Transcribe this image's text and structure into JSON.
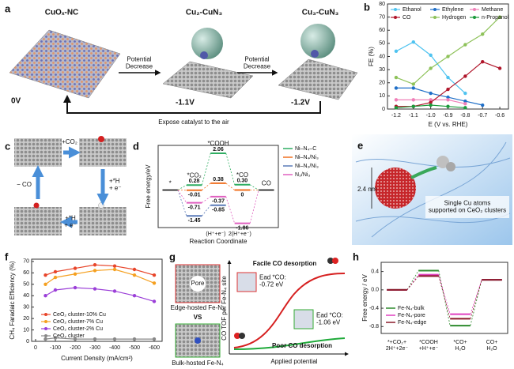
{
  "panel_labels": [
    "a",
    "b",
    "c",
    "d",
    "e",
    "f",
    "g",
    "h"
  ],
  "panel_a": {
    "catalysts": [
      "CuOₓ-NC",
      "Cu₂-CuN₃",
      "Cu₃-CuN₃"
    ],
    "potentials": [
      "0V",
      "-1.1V",
      "-1.2V"
    ],
    "arrows": [
      "Potential\nDecrease",
      "Potential\nDecrease"
    ],
    "return_arrow": "Expose catalyst to the air"
  },
  "panel_c": {
    "steps": [
      "+CO₂",
      "+*H\n+ e⁻",
      "+*H\n+ e⁻",
      "− CO"
    ]
  },
  "panel_e": {
    "scale": "2.4 nm",
    "caption": "Single Cu atoms\nsupported on CeO₂ clusters"
  },
  "panel_g": {
    "pore": "Pore",
    "edge_site": "Edge-hosted Fe-N₄",
    "versus": "VS",
    "bulk_site": "Bulk-hosted Fe-N₄",
    "y_label": "CO TOF per Fe-N₄ site",
    "x_label": "Applied potential",
    "facile": "Facile CO desorption",
    "poor": "Poor CO desorption",
    "edge_energy": "Ead *CO:\n-0.72 eV",
    "bulk_energy": "Ead *CO:\n-1.06 eV"
  },
  "chart_data": [
    {
      "type": "line",
      "x_label": "E (V vs. RHE)",
      "y_label": "FE (%)",
      "x": [
        -1.2,
        -1.1,
        -1,
        -0.9,
        -0.8,
        -0.7,
        -0.6
      ],
      "xlim": [
        -1.25,
        -0.55
      ],
      "xticks": [
        -1.2,
        -1.1,
        {
          "value": -1,
          "label": "-1.0"
        },
        -0.9,
        -0.8,
        -0.7,
        -0.6
      ],
      "ylim": [
        0,
        80
      ],
      "yticks": [
        0,
        10,
        20,
        30,
        40,
        50,
        60,
        70,
        80
      ],
      "legend": "top",
      "series": [
        {
          "name": "Ethanol",
          "color": "#4fc3f0",
          "values": [
            44,
            51,
            41,
            24,
            12,
            null,
            null
          ]
        },
        {
          "name": "Ethylene",
          "color": "#1f6fc8",
          "values": [
            16,
            16,
            12,
            9,
            6,
            3,
            null
          ]
        },
        {
          "name": "Methane",
          "color": "#f07fb8",
          "values": [
            7,
            7,
            7,
            7,
            4,
            null,
            null
          ]
        },
        {
          "name": "CO",
          "color": "#b0152a",
          "values": [
            2,
            2,
            5,
            15,
            25,
            36,
            31
          ]
        },
        {
          "name": "Hydrogen",
          "color": "#8ec25a",
          "values": [
            24,
            19,
            31,
            40,
            49,
            57,
            70
          ]
        },
        {
          "name": "n-Propanol",
          "color": "#1a9a3a",
          "values": [
            1,
            2,
            3,
            2,
            1,
            null,
            null
          ]
        }
      ]
    },
    {
      "type": "energy",
      "x_label": "Reaction Coordinate",
      "y_label": "Free energy/eV",
      "categories": [
        "*",
        "*CO₂",
        "*COOH",
        "*CO",
        "CO"
      ],
      "steps": [
        "(H⁺+e⁻)",
        "2(H⁺+e⁻)"
      ],
      "ylim": [
        -2.1,
        2.5
      ],
      "legend": "right",
      "series": [
        {
          "name": "Ni–N₄–C",
          "color": "#2fae62",
          "values": [
            null,
            0.28,
            2.06,
            0.3,
            null
          ],
          "value_labels": [
            null,
            "0.28",
            "2.06",
            "0.30",
            null
          ]
        },
        {
          "name": "Ni–N₄/Ni₃",
          "color": "#f07020",
          "values": [
            null,
            -0.01,
            0.38,
            0,
            null
          ],
          "value_labels": [
            null,
            "-0.01",
            "0.38",
            "0",
            null
          ]
        },
        {
          "name": "Ni–N₃/Ni₃",
          "color": "#5a7ab8",
          "values": [
            null,
            -1.45,
            -0.85,
            null,
            null
          ],
          "value_labels": [
            null,
            "-1.45",
            "-0.85",
            null,
            null
          ]
        },
        {
          "name": "N₃/Ni₃",
          "color": "#e060c0",
          "values": [
            null,
            -0.71,
            -0.37,
            -1.86,
            null
          ],
          "value_labels": [
            null,
            "-0.71",
            "-0.37",
            "-1.86",
            null
          ]
        }
      ]
    },
    {
      "type": "line",
      "x_label": "Current Density (mA/cm²)",
      "y_label": "CH₄ Faradaic Efficiency (%)",
      "x": [
        -50,
        -100,
        -200,
        -300,
        -400,
        -500,
        -600
      ],
      "xlim": [
        20,
        -640
      ],
      "xticks": [
        0,
        -100,
        -200,
        -300,
        -400,
        -500,
        -600
      ],
      "ylim": [
        0,
        72
      ],
      "yticks": [
        0,
        10,
        20,
        30,
        40,
        50,
        60,
        70
      ],
      "legend": "bottom-left",
      "series": [
        {
          "name": "CeO₂ cluster-10% Cu",
          "color": "#e8452a",
          "values": [
            58,
            61,
            64,
            67,
            66,
            63,
            58
          ]
        },
        {
          "name": "CeO₂ cluster-7% Cu",
          "color": "#f5a020",
          "values": [
            50,
            56,
            59,
            62,
            63,
            58,
            51
          ]
        },
        {
          "name": "CeO₂ cluster-2% Cu",
          "color": "#9b3fd8",
          "values": [
            40,
            45,
            47,
            46,
            44,
            40,
            35
          ]
        },
        {
          "name": "CeO₂ cluster",
          "color": "#888888",
          "values": [
            2,
            3,
            2,
            2,
            2,
            2,
            2
          ]
        }
      ]
    },
    {
      "type": "energy",
      "y_label": "Free energy / eV",
      "categories": [
        "*+CO₂+\n2H⁺+2e⁻",
        "*COOH\n+H⁺+e⁻",
        "*CO+\nH₂O",
        "CO+\nH₂O"
      ],
      "ylim": [
        -0.95,
        0.6
      ],
      "yticks": [
        -0.8,
        -0.4,
        {
          "value": 0,
          "label": "0.0"
        },
        0.4
      ],
      "legend": "bottom-left",
      "series": [
        {
          "name": "Fe-N₄-bulk",
          "color": "#2e8b2e",
          "values": [
            0,
            0.42,
            -0.78,
            0.22
          ]
        },
        {
          "name": "Fe-N₄-pore",
          "color": "#e040c0",
          "values": [
            0,
            0.33,
            -0.53,
            0.22
          ]
        },
        {
          "name": "Fe-N₄-edge",
          "color": "#8b1a2a",
          "values": [
            0,
            0.3,
            -0.63,
            0.22
          ]
        }
      ]
    }
  ]
}
